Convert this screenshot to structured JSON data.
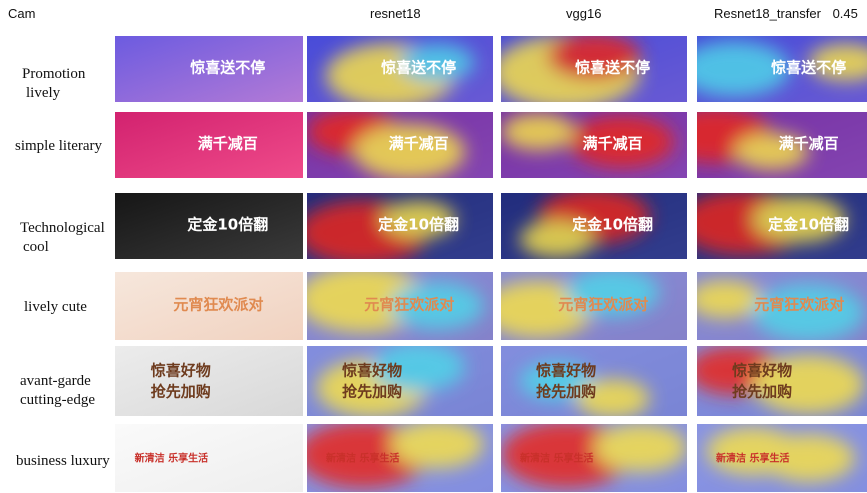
{
  "headers": {
    "cam": "Cam",
    "col1": "resnet18",
    "col2": "vgg16",
    "col3": "Resnet18_transfer",
    "col3_suffix": "0.45"
  },
  "rows": [
    {
      "label_line1": "Promotion",
      "label_line2": "lively",
      "banner_text": "惊喜送不停",
      "base": "#6c5be0",
      "base2": "#b37ad6",
      "text_color": "#ffffff"
    },
    {
      "label_line1": "simple literary",
      "label_line2": "",
      "banner_text": "满千减百",
      "base": "#d2226f",
      "base2": "#ef4b8a",
      "text_color": "#ffffff"
    },
    {
      "label_line1": "Technological",
      "label_line2": "cool",
      "banner_text": "定金10倍翻",
      "base": "#161616",
      "base2": "#3a3a3a",
      "text_color": "#ffffff"
    },
    {
      "label_line1": "lively cute",
      "label_line2": "",
      "banner_text": "元宵狂欢派对",
      "base": "#f6e7dc",
      "base2": "#f1d2c0",
      "text_color": "#e08a50"
    },
    {
      "label_line1": "avant-garde",
      "label_line2": "cutting-edge",
      "banner_text_line1": "惊喜好物",
      "banner_text_line2": "抢先加购",
      "base": "#ececec",
      "base2": "#d8d8d8",
      "text_color": "#6e3b1e"
    },
    {
      "label_line1": "business luxury",
      "label_line2": "",
      "banner_text": "新清洁 乐享生活",
      "base": "#fafafa",
      "base2": "#eeeeee",
      "text_color": "#c8302a"
    }
  ],
  "colors": {
    "heat_blue": "#2b3fd1",
    "heat_cyan": "#4fd4e8",
    "heat_yellow": "#f5e04a",
    "heat_red": "#e8261b"
  }
}
